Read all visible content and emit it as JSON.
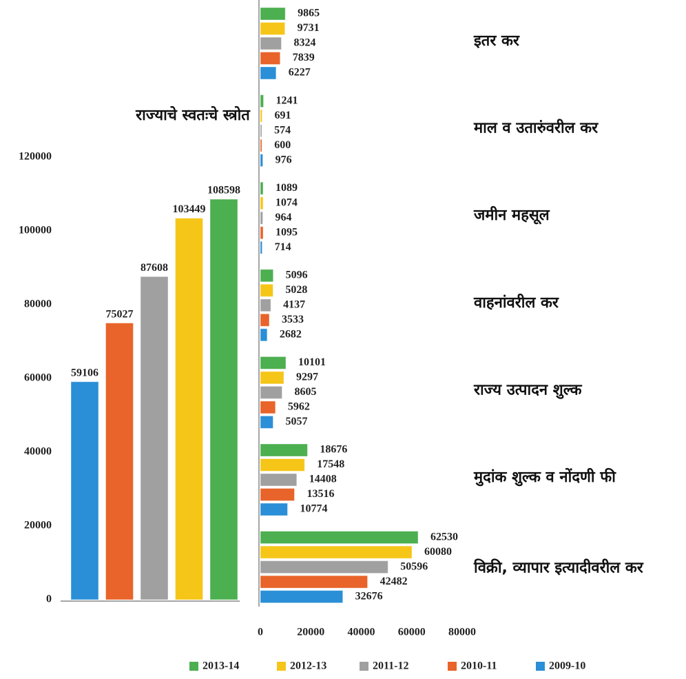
{
  "chart_data": [
    {
      "type": "bar",
      "title": "राज्याचे स्वतःचे स्त्रोत",
      "values": [
        59106,
        75027,
        87608,
        103449,
        108598
      ],
      "colors": [
        "#2a8fd6",
        "#e8642a",
        "#a0a0a0",
        "#f5c518",
        "#4caf50"
      ],
      "ylim": [
        0,
        120000
      ],
      "yticks": [
        0,
        20000,
        40000,
        60000,
        80000,
        100000,
        120000
      ]
    },
    {
      "type": "barh",
      "categories": [
        "इतर कर",
        "माल व उतारुंवरील कर",
        "जमीन महसूल",
        "वाहनांवरील कर",
        "राज्य उत्पादन शुल्क",
        "मुदांक शुल्क व नोंदणी फी",
        "विक्री, व्यापार इत्यादीवरील कर"
      ],
      "series": [
        {
          "name": "2013-14",
          "color": "#4caf50",
          "values": [
            9865,
            1241,
            1089,
            5096,
            10101,
            18676,
            62530
          ]
        },
        {
          "name": "2012-13",
          "color": "#f5c518",
          "values": [
            9731,
            691,
            1074,
            5028,
            9297,
            17548,
            60080
          ]
        },
        {
          "name": "2011-12",
          "color": "#a0a0a0",
          "values": [
            8324,
            574,
            964,
            4137,
            8605,
            14408,
            50596
          ]
        },
        {
          "name": "2010-11",
          "color": "#e8642a",
          "values": [
            7839,
            600,
            1095,
            3533,
            5962,
            13516,
            42482
          ]
        },
        {
          "name": "2009-10",
          "color": "#2a8fd6",
          "values": [
            6227,
            976,
            714,
            2682,
            5057,
            10774,
            32676
          ]
        }
      ],
      "xlim": [
        0,
        80000
      ],
      "xticks": [
        0,
        20000,
        40000,
        60000,
        80000
      ]
    }
  ]
}
